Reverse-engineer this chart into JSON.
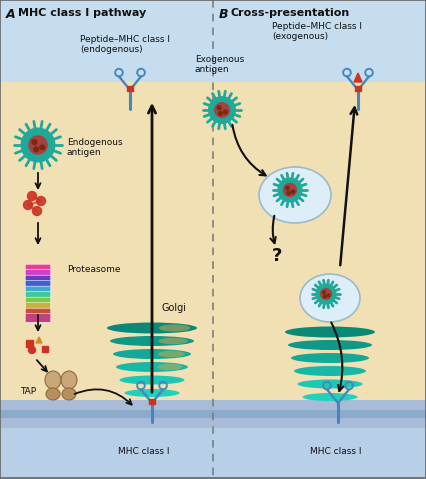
{
  "title_A": "A   MHC class I pathway",
  "title_B": "B   Cross-presentation",
  "label_peptide_MHC_endo": "Peptide–MHC class I\n(endogenous)",
  "label_exogenous": "Exogenous\nantigen",
  "label_peptide_MHC_exo": "Peptide–MHC class I\n(exogenous)",
  "label_endo_antigen": "Endogenous\nantigen",
  "label_proteasome": "Proteasome",
  "label_TAP": "TAP",
  "label_golgi": "Golgi",
  "label_MHC_classI_A": "MHC class I",
  "label_MHC_classI_B": "MHC class I",
  "label_question": "?",
  "bg_top": "#c5ddef",
  "bg_mid": "#f2e0b5",
  "bg_bot": "#b8cfe8",
  "membrane_color": "#a8bcd8",
  "divider_color": "#777777",
  "golgi_colors": [
    "#0fa898",
    "#13b8a5",
    "#18c4b0",
    "#20d0bc",
    "#0d9488",
    "#0a8070"
  ],
  "golgi_dashed": "#c8a850",
  "cell_color": "#ddeef8",
  "cell_border": "#99bbcc",
  "arrow_color": "#111111",
  "mhc_color": "#4488bb",
  "virus_outer": "#20a898",
  "virus_inner": "#bb3333",
  "text_color": "#111111",
  "fig_width": 4.27,
  "fig_height": 4.79
}
